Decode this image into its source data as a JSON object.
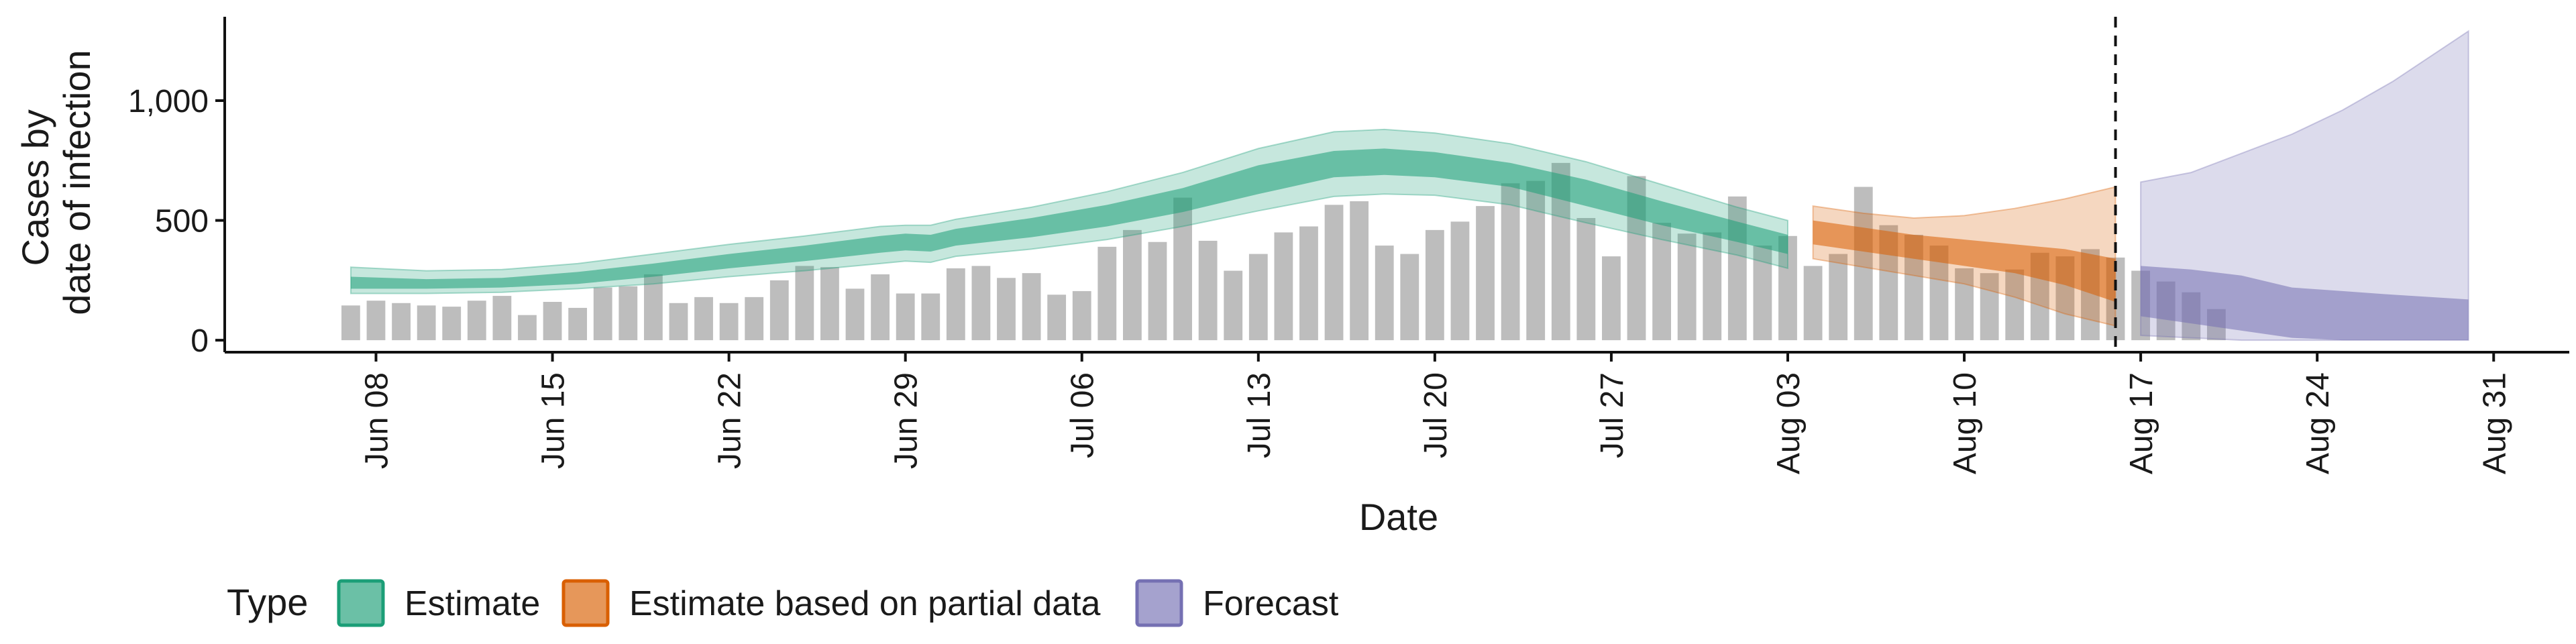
{
  "chart_data": {
    "type": "bar+area",
    "xlabel": "Date",
    "ylabel_lines": [
      "Cases by",
      "date of infection"
    ],
    "x_range": [
      "2020-06-02",
      "2020-09-03"
    ],
    "ylim": [
      -50,
      1350
    ],
    "y_ticks": [
      {
        "value": 0,
        "label": "0"
      },
      {
        "value": 500,
        "label": "500"
      },
      {
        "value": 1000,
        "label": "1,000"
      }
    ],
    "x_ticks": [
      {
        "date": "2020-06-08",
        "label": "Jun 08"
      },
      {
        "date": "2020-06-15",
        "label": "Jun 15"
      },
      {
        "date": "2020-06-22",
        "label": "Jun 22"
      },
      {
        "date": "2020-06-29",
        "label": "Jun 29"
      },
      {
        "date": "2020-07-06",
        "label": "Jul 06"
      },
      {
        "date": "2020-07-13",
        "label": "Jul 13"
      },
      {
        "date": "2020-07-20",
        "label": "Jul 20"
      },
      {
        "date": "2020-07-27",
        "label": "Jul 27"
      },
      {
        "date": "2020-08-03",
        "label": "Aug 03"
      },
      {
        "date": "2020-08-10",
        "label": "Aug 10"
      },
      {
        "date": "2020-08-17",
        "label": "Aug 17"
      },
      {
        "date": "2020-08-24",
        "label": "Aug 24"
      },
      {
        "date": "2020-08-31",
        "label": "Aug 31"
      }
    ],
    "vline_date": "2020-08-16",
    "bars": {
      "start_date": "2020-06-07",
      "color": "#bdbdbd",
      "values": [
        145,
        165,
        155,
        145,
        140,
        165,
        185,
        105,
        160,
        135,
        220,
        225,
        275,
        155,
        180,
        155,
        180,
        250,
        310,
        305,
        215,
        275,
        195,
        195,
        300,
        310,
        260,
        280,
        190,
        205,
        390,
        460,
        410,
        595,
        415,
        290,
        360,
        450,
        475,
        565,
        580,
        395,
        360,
        460,
        495,
        560,
        655,
        665,
        740,
        510,
        350,
        685,
        490,
        445,
        450,
        600,
        395,
        435,
        310,
        360,
        640,
        480,
        440,
        395,
        300,
        280,
        295,
        365,
        350,
        380,
        345,
        290,
        245,
        200,
        130
      ]
    },
    "series": [
      {
        "name": "Estimate",
        "color": "#1b9e77",
        "dates": [
          "2020-06-07",
          "2020-06-10",
          "2020-06-13",
          "2020-06-16",
          "2020-06-19",
          "2020-06-22",
          "2020-06-25",
          "2020-06-28",
          "2020-06-29",
          "2020-06-30",
          "2020-07-01",
          "2020-07-04",
          "2020-07-07",
          "2020-07-10",
          "2020-07-13",
          "2020-07-16",
          "2020-07-18",
          "2020-07-20",
          "2020-07-23",
          "2020-07-26",
          "2020-07-29",
          "2020-08-01",
          "2020-08-03"
        ],
        "outer_lower": [
          195,
          195,
          200,
          215,
          235,
          265,
          290,
          320,
          330,
          325,
          350,
          380,
          420,
          475,
          540,
          600,
          610,
          605,
          565,
          490,
          420,
          355,
          300
        ],
        "outer_upper": [
          305,
          290,
          295,
          320,
          360,
          400,
          435,
          475,
          480,
          480,
          505,
          555,
          620,
          700,
          800,
          870,
          880,
          865,
          820,
          745,
          650,
          555,
          500
        ],
        "inner_lower": [
          215,
          215,
          220,
          235,
          265,
          300,
          330,
          365,
          375,
          370,
          395,
          430,
          475,
          535,
          610,
          680,
          690,
          680,
          640,
          560,
          480,
          410,
          360
        ],
        "inner_upper": [
          265,
          255,
          260,
          285,
          320,
          360,
          395,
          435,
          445,
          440,
          465,
          510,
          565,
          635,
          730,
          790,
          800,
          785,
          740,
          670,
          580,
          495,
          440
        ]
      },
      {
        "name": "Estimate based on partial data",
        "color": "#d95f02",
        "dates": [
          "2020-08-04",
          "2020-08-06",
          "2020-08-08",
          "2020-08-10",
          "2020-08-12",
          "2020-08-14",
          "2020-08-16"
        ],
        "outer_lower": [
          340,
          305,
          270,
          235,
          180,
          110,
          60
        ],
        "outer_upper": [
          560,
          530,
          510,
          520,
          550,
          590,
          640
        ],
        "inner_lower": [
          400,
          370,
          340,
          310,
          280,
          230,
          160
        ],
        "inner_upper": [
          500,
          470,
          440,
          420,
          400,
          380,
          340
        ]
      },
      {
        "name": "Forecast",
        "color": "#7570b3",
        "dates": [
          "2020-08-17",
          "2020-08-19",
          "2020-08-21",
          "2020-08-23",
          "2020-08-25",
          "2020-08-27",
          "2020-08-30"
        ],
        "outer_lower": [
          20,
          10,
          0,
          0,
          0,
          0,
          0
        ],
        "outer_upper": [
          660,
          700,
          780,
          860,
          960,
          1080,
          1290
        ],
        "inner_lower": [
          100,
          70,
          40,
          10,
          0,
          0,
          0
        ],
        "inner_upper": [
          310,
          295,
          270,
          220,
          205,
          190,
          170
        ]
      }
    ],
    "legend": {
      "title": "Type",
      "position": "bottom",
      "items": [
        {
          "label": "Estimate",
          "color": "#1b9e77"
        },
        {
          "label": "Estimate based on partial data",
          "color": "#d95f02"
        },
        {
          "label": "Forecast",
          "color": "#7570b3"
        }
      ]
    }
  }
}
